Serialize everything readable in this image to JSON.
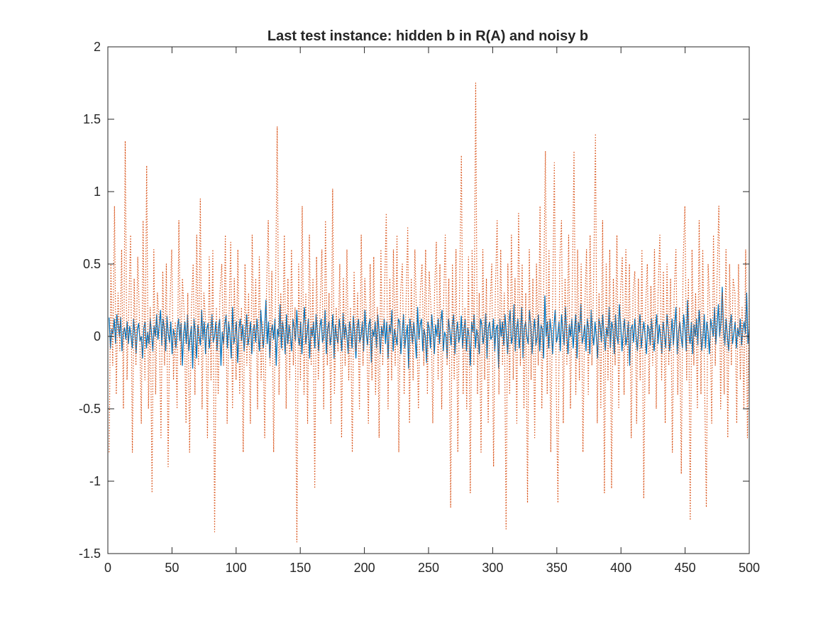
{
  "chart_data": {
    "type": "line",
    "title": "Last test instance: hidden b in R(A) and noisy b",
    "xlabel": "",
    "ylabel": "",
    "xlim": [
      0,
      500
    ],
    "ylim": [
      -1.5,
      2
    ],
    "xticks": [
      0,
      50,
      100,
      150,
      200,
      250,
      300,
      350,
      400,
      450,
      500
    ],
    "yticks": [
      -1.5,
      -1,
      -0.5,
      0,
      0.5,
      1,
      1.5,
      2
    ],
    "xtick_labels": [
      "0",
      "50",
      "100",
      "150",
      "200",
      "250",
      "300",
      "350",
      "400",
      "450",
      "500"
    ],
    "ytick_labels": [
      "-1.5",
      "-1",
      "-0.5",
      "0",
      "0.5",
      "1",
      "1.5",
      "2"
    ],
    "grid": false,
    "legend": "none",
    "series": [
      {
        "color": "#0072BD",
        "line_style": "solid",
        "x_range": [
          1,
          500
        ],
        "values_approx": [
          0.13,
          -0.08,
          0.05,
          0.02,
          0.12,
          -0.05,
          0.15,
          0.08,
          0.0,
          0.13,
          -0.1,
          0.03,
          0.06,
          -0.02,
          0.1,
          -0.05,
          0.07,
          0.0,
          -0.08,
          0.12,
          0.02,
          -0.12,
          0.05,
          0.09,
          -0.03,
          0.0,
          -0.15,
          0.06,
          0.1,
          -0.08,
          0.03,
          -0.05,
          0.12,
          0.02,
          -0.1,
          0.07,
          0.0,
          0.15,
          -0.02,
          0.08,
          0.18,
          -0.06,
          0.12,
          0.05,
          -0.1,
          0.14,
          0.02,
          -0.04,
          0.1,
          -0.12,
          0.05,
          0.0,
          -0.08,
          0.06,
          0.12,
          -0.03,
          0.09,
          -0.2,
          0.02,
          0.1,
          -0.05,
          0.15,
          -0.1,
          0.0,
          0.07,
          -0.22,
          0.12,
          0.03,
          -0.15,
          0.08,
          0.0,
          -0.06,
          0.18,
          -0.02,
          0.1,
          -0.12,
          0.05,
          0.09,
          -0.08,
          0.02,
          0.15,
          -0.04,
          0.0,
          0.1,
          -0.1,
          0.06,
          0.12,
          -0.2,
          0.03,
          -0.05,
          0.08,
          0.15,
          -0.08,
          0.1,
          0.02,
          -0.15,
          0.2,
          -0.05,
          0.0,
          0.1,
          -0.18,
          0.05,
          0.12,
          -0.03,
          0.08,
          -0.1,
          0.02,
          0.15,
          -0.06,
          0.0,
          0.1,
          -0.12,
          0.05,
          0.08,
          -0.04,
          0.12,
          0.0,
          -0.1,
          0.18,
          0.02,
          -0.08,
          0.06,
          0.25,
          -0.05,
          0.1,
          -0.15,
          0.03,
          0.08,
          -0.02,
          0.12,
          -0.2,
          0.05,
          0.0,
          0.22,
          -0.08,
          0.1,
          0.02,
          -0.12,
          0.15,
          -0.05,
          0.08,
          0.0,
          -0.1,
          0.12,
          0.05,
          -0.03,
          0.18,
          0.0,
          -0.06,
          0.1,
          -0.12,
          0.08,
          0.2,
          -0.05,
          0.02,
          0.12,
          -0.15,
          0.06,
          0.0,
          0.1,
          -0.08,
          0.15,
          0.03,
          -0.1,
          0.07,
          0.12,
          -0.04,
          0.0,
          0.18,
          -0.12,
          0.05,
          0.1,
          -0.06,
          0.02,
          0.15,
          -0.15,
          0.08,
          0.0,
          -0.05,
          0.12,
          0.03,
          -0.1,
          0.16,
          -0.02,
          0.08,
          0.0,
          -0.12,
          0.1,
          0.05,
          -0.08,
          0.14,
          0.02,
          -0.15,
          0.06,
          0.12,
          -0.04,
          0.0,
          0.1,
          -0.1,
          0.18,
          0.02,
          -0.06,
          0.08,
          0.12,
          -0.18,
          0.05,
          0.0,
          0.1,
          -0.08,
          0.15,
          0.03,
          -0.12,
          0.07,
          0.0,
          0.12,
          -0.05,
          0.1,
          -0.15,
          0.08,
          0.02,
          0.18,
          -0.1,
          0.05,
          0.0,
          -0.06,
          0.12,
          0.1,
          -0.12,
          0.03,
          0.15,
          -0.08,
          0.0,
          0.08,
          -0.22,
          0.12,
          0.05,
          -0.05,
          0.1,
          0.0,
          -0.15,
          0.2,
          -0.02,
          0.08,
          0.12,
          -0.1,
          0.05,
          0.0,
          -0.18,
          0.1,
          0.06,
          -0.08,
          0.15,
          0.02,
          -0.12,
          0.08,
          0.0,
          0.12,
          -0.05,
          0.1,
          0.18,
          -0.1,
          0.03,
          0.0,
          -0.15,
          0.12,
          0.05,
          -0.06,
          0.08,
          0.15,
          -0.12,
          0.02,
          0.1,
          -0.04,
          0.0,
          0.14,
          -0.08,
          0.05,
          0.12,
          -0.1,
          0.06,
          0.0,
          -0.2,
          0.1,
          0.03,
          0.15,
          -0.08,
          0.05,
          0.0,
          -0.12,
          0.12,
          0.08,
          -0.05,
          0.02,
          0.16,
          -0.15,
          0.06,
          0.1,
          -0.02,
          0.0,
          0.12,
          -0.1,
          0.05,
          0.08,
          -0.22,
          0.12,
          0.0,
          0.1,
          -0.06,
          0.15,
          0.02,
          -0.12,
          0.08,
          0.18,
          -0.05,
          0.0,
          0.22,
          -0.1,
          0.05,
          0.12,
          -0.08,
          0.02,
          0.2,
          -0.15,
          0.06,
          0.1,
          0.0,
          -0.05,
          0.18,
          0.08,
          -0.12,
          0.03,
          0.12,
          -0.06,
          0.0,
          0.15,
          -0.1,
          0.08,
          0.05,
          -0.15,
          0.28,
          0.0,
          0.1,
          -0.08,
          0.12,
          0.03,
          -0.12,
          0.06,
          0.18,
          -0.04,
          0.0,
          0.1,
          -0.1,
          0.15,
          0.05,
          -0.06,
          0.2,
          0.02,
          -0.12,
          0.08,
          0.0,
          0.12,
          -0.08,
          0.05,
          0.15,
          -0.15,
          0.1,
          0.03,
          0.22,
          -0.05,
          0.0,
          0.08,
          -0.1,
          0.12,
          0.05,
          -0.12,
          0.18,
          0.02,
          -0.06,
          0.1,
          0.0,
          -0.15,
          0.12,
          0.08,
          -0.04,
          0.15,
          0.02,
          -0.1,
          0.06,
          0.0,
          0.2,
          -0.08,
          0.1,
          0.05,
          -0.12,
          0.15,
          0.0,
          -0.05,
          0.22,
          0.08,
          -0.1,
          0.03,
          0.12,
          -0.06,
          0.0,
          0.1,
          -0.2,
          0.05,
          0.08,
          -0.04,
          0.12,
          0.0,
          -0.1,
          0.06,
          0.15,
          -0.08,
          0.02,
          0.1,
          0.0,
          -0.12,
          0.08,
          0.05,
          -0.06,
          0.12,
          0.0,
          -0.1,
          0.04,
          0.15,
          -0.05,
          0.08,
          0.0,
          -0.12,
          0.1,
          0.02,
          -0.08,
          0.15,
          0.05,
          -0.1,
          0.0,
          0.12,
          -0.06,
          0.08,
          0.2,
          -0.12,
          0.03,
          0.1,
          0.0,
          -0.08,
          0.15,
          0.05,
          -0.1,
          0.25,
          0.02,
          -0.05,
          0.1,
          -0.12,
          0.08,
          0.0,
          0.12,
          -0.06,
          0.18,
          0.05,
          -0.1,
          0.0,
          0.15,
          -0.08,
          0.1,
          0.03,
          -0.12,
          0.12,
          0.06,
          0.0,
          0.2,
          -0.05,
          0.08,
          0.22,
          0.0,
          0.1,
          0.34,
          0.05,
          -0.06,
          0.12,
          0.0,
          -0.1,
          0.08,
          0.15,
          -0.05,
          0.02,
          0.1,
          -0.08,
          0.06,
          0.0,
          0.12,
          -0.06,
          0.04,
          0.1,
          0.02,
          0.3,
          -0.05,
          0.05
        ]
      },
      {
        "color": "#D95319",
        "line_style": "dotted",
        "x_range": [
          1,
          500
        ],
        "values_approx": [
          -0.8,
          0.5,
          -0.2,
          0.9,
          -0.4,
          0.3,
          -0.1,
          0.6,
          -0.5,
          1.35,
          -0.3,
          0.2,
          0.7,
          -0.8,
          0.4,
          -0.2,
          0.55,
          0.1,
          -0.6,
          0.8,
          -0.3,
          1.18,
          -0.5,
          0.2,
          -1.08,
          0.6,
          -0.4,
          0.3,
          0.1,
          -0.7,
          0.45,
          -0.2,
          0.5,
          -0.9,
          0.2,
          0.6,
          -0.3,
          0.1,
          -0.5,
          0.8,
          -0.2,
          0.4,
          0.15,
          -0.6,
          0.3,
          -0.8,
          0.2,
          0.5,
          -0.4,
          0.7,
          -0.2,
          0.95,
          -0.5,
          0.3,
          0.1,
          -0.7,
          0.55,
          -0.3,
          0.6,
          -1.35,
          0.2,
          -0.4,
          0.3,
          0.5,
          -0.2,
          0.7,
          -0.6,
          0.1,
          0.65,
          -0.5,
          0.4,
          -0.3,
          0.6,
          -0.4,
          0.2,
          -0.8,
          0.5,
          -0.2,
          0.3,
          -0.6,
          0.7,
          -0.1,
          0.4,
          -0.5,
          0.55,
          -0.3,
          0.1,
          -0.7,
          0.3,
          0.8,
          -0.2,
          0.45,
          -0.8,
          0.2,
          1.45,
          -0.4,
          0.3,
          -0.1,
          0.7,
          -0.5,
          0.4,
          -0.3,
          0.6,
          -0.2,
          0.2,
          -1.42,
          0.5,
          -0.3,
          0.9,
          -0.4,
          0.3,
          -0.6,
          0.7,
          -0.2,
          0.4,
          -1.05,
          0.55,
          -0.3,
          0.2,
          0.6,
          -0.5,
          0.8,
          -0.2,
          0.3,
          -0.6,
          1.02,
          -0.4,
          0.2,
          -0.1,
          0.5,
          -0.7,
          0.4,
          -0.2,
          0.6,
          -0.3,
          0.2,
          -0.8,
          0.45,
          -0.1,
          0.3,
          -0.5,
          0.7,
          -0.2,
          0.4,
          0.1,
          -0.6,
          0.5,
          -0.3,
          0.55,
          -0.4,
          0.2,
          -0.7,
          0.6,
          -0.2,
          0.3,
          0.85,
          -0.5,
          0.4,
          -0.3,
          0.6,
          -0.2,
          0.7,
          -0.8,
          0.3,
          0.5,
          -0.4,
          0.2,
          0.75,
          -0.6,
          0.4,
          -0.3,
          0.6,
          0.1,
          -0.5,
          0.3,
          0.5,
          -0.2,
          0.6,
          -0.4,
          0.45,
          0.2,
          -0.6,
          0.3,
          0.65,
          -0.3,
          0.5,
          -0.5,
          0.2,
          0.7,
          -0.2,
          0.4,
          -1.18,
          0.5,
          -0.3,
          0.6,
          -0.8,
          0.3,
          1.25,
          -0.4,
          0.2,
          -0.5,
          0.55,
          -1.08,
          0.6,
          -0.2,
          1.75,
          -0.4,
          0.3,
          -0.8,
          0.6,
          -0.3,
          0.4,
          -0.6,
          0.2,
          0.5,
          -0.9,
          0.3,
          0.8,
          -0.4,
          0.6,
          -0.2,
          0.3,
          -1.33,
          0.5,
          -0.4,
          0.7,
          -0.3,
          0.4,
          -0.6,
          0.85,
          -0.2,
          0.5,
          -0.5,
          0.3,
          -1.15,
          0.6,
          -0.3,
          0.4,
          -0.7,
          0.5,
          -0.2,
          0.9,
          -0.5,
          0.3,
          1.28,
          -0.4,
          0.6,
          -0.8,
          0.2,
          1.2,
          -0.3,
          -1.15,
          0.5,
          0.8,
          -0.6,
          0.4,
          -0.2,
          0.7,
          -0.5,
          0.3,
          1.28,
          -0.4,
          0.6,
          -0.3,
          0.5,
          -0.8,
          0.2,
          0.6,
          -0.4,
          0.7,
          -0.2,
          0.4,
          1.4,
          -0.6,
          0.3,
          -0.5,
          0.8,
          -1.08,
          0.5,
          -0.3,
          0.6,
          -1.05,
          0.4,
          -0.2,
          0.7,
          -0.5,
          0.3,
          0.55,
          -0.4,
          0.6,
          -0.2,
          0.5,
          -0.7,
          0.3,
          0.45,
          -0.6,
          0.4,
          -0.3,
          0.6,
          -1.12,
          0.2,
          0.5,
          -0.4,
          0.35,
          -0.2,
          0.6,
          -0.5,
          0.3,
          0.7,
          -0.3,
          0.45,
          -0.6,
          0.5,
          -0.2,
          0.4,
          -0.8,
          0.3,
          0.6,
          -0.4,
          0.2,
          -0.95,
          0.5,
          0.9,
          -0.3,
          0.4,
          -1.27,
          0.6,
          -0.2,
          0.3,
          -0.5,
          0.8,
          -0.4,
          0.6,
          -0.3,
          -1.18,
          0.5,
          0.2,
          -0.6,
          0.7,
          -0.2,
          0.4,
          0.9,
          -0.5,
          0.3,
          -0.4,
          0.6,
          -0.7,
          0.5,
          -0.2,
          0.4,
          0.3,
          -0.6,
          0.5,
          -0.3,
          0.2,
          -0.5,
          0.6,
          -0.7,
          0.3
        ]
      }
    ]
  }
}
